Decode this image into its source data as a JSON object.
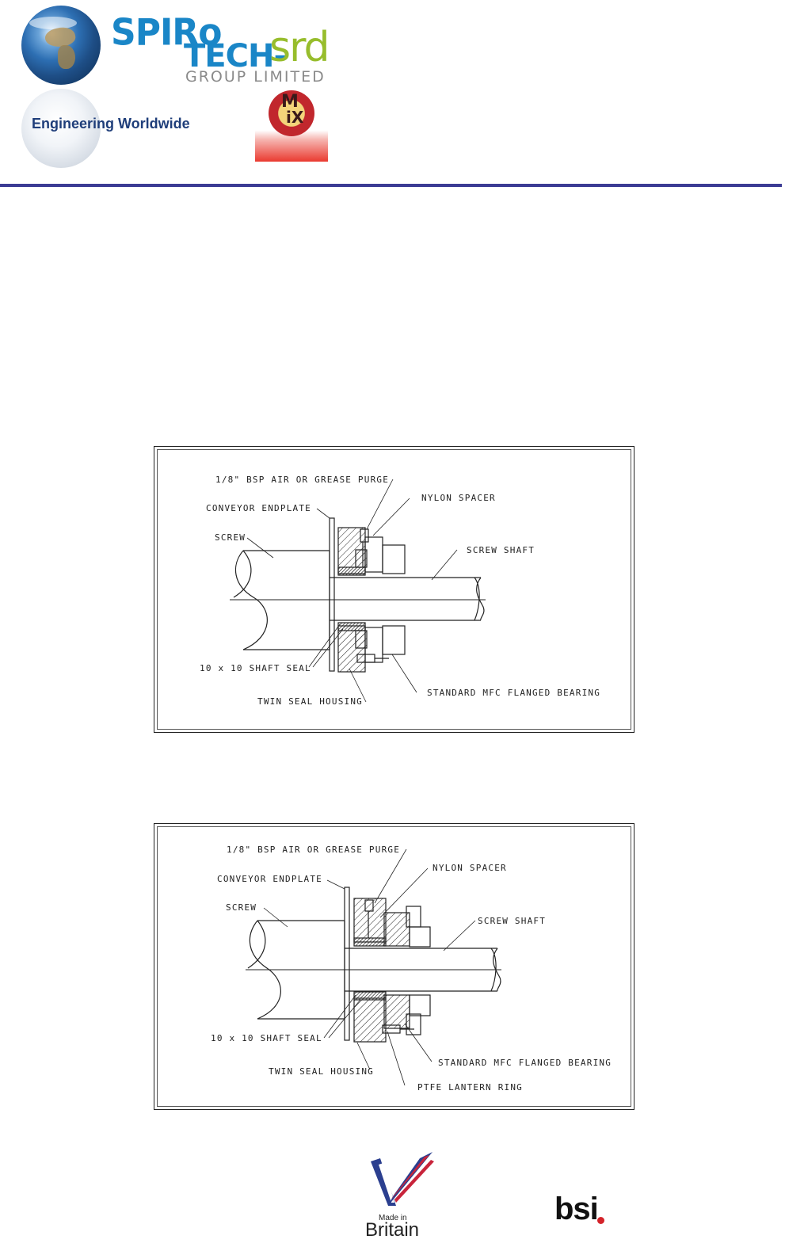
{
  "header": {
    "brand_line1": "SPIRo",
    "brand_line2": "TECH-",
    "brand_srd": "srd",
    "brand_group": "GROUP LIMITED",
    "tagline": "Engineering Worldwide",
    "mix_logo_text": "MiX",
    "rule_color": "#3b3b94"
  },
  "drawings": [
    {
      "labels": {
        "purge": "1/8\" BSP AIR OR GREASE PURGE",
        "endplate": "CONVEYOR ENDPLATE",
        "nylon": "NYLON SPACER",
        "screw": "SCREW",
        "shaft": "SCREW SHAFT",
        "seal": "10 x 10 SHAFT SEAL",
        "bearing": "STANDARD MFC FLANGED BEARING",
        "housing": "TWIN SEAL HOUSING"
      }
    },
    {
      "labels": {
        "purge": "1/8\" BSP AIR OR GREASE PURGE",
        "endplate": "CONVEYOR ENDPLATE",
        "nylon": "NYLON SPACER",
        "screw": "SCREW",
        "shaft": "SCREW SHAFT",
        "seal": "10 x 10 SHAFT SEAL",
        "bearing": "STANDARD MFC FLANGED BEARING",
        "housing": "TWIN SEAL HOUSING",
        "lantern": "PTFE LANTERN RING"
      }
    }
  ],
  "footer": {
    "made_in": "Made in",
    "britain": "Britain",
    "bsi": "bsi"
  }
}
